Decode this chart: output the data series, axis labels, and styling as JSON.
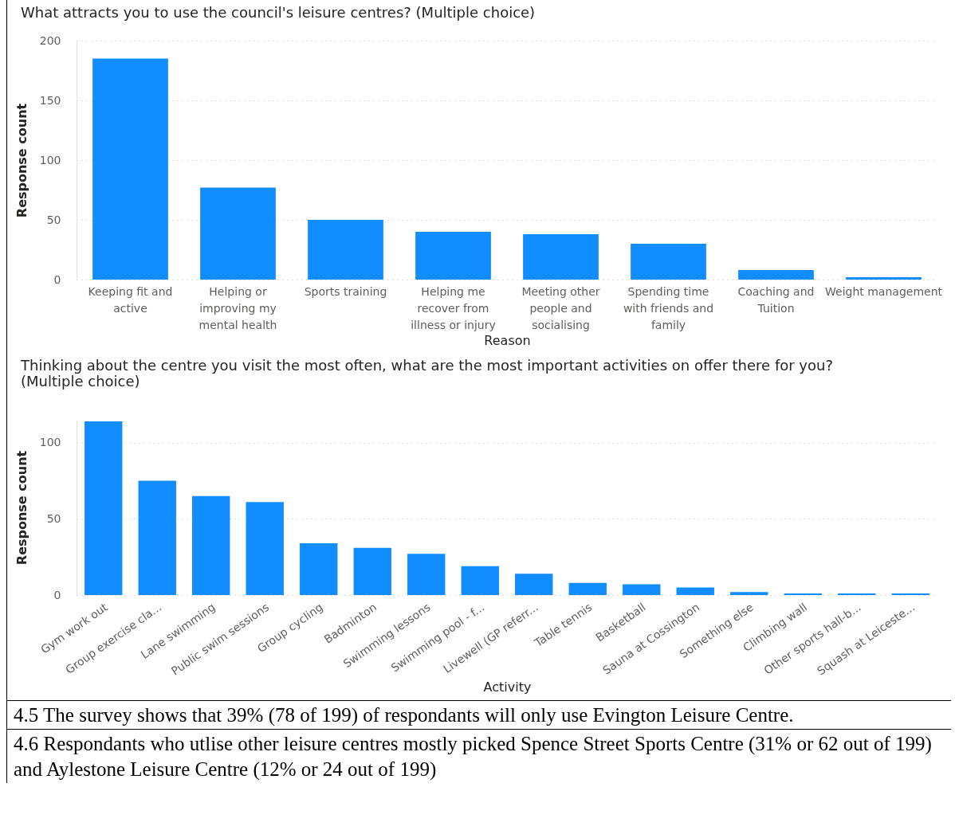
{
  "chart_data": [
    {
      "type": "bar",
      "title": "What attracts you to use the council's leisure centres? (Multiple choice)",
      "xlabel": "Reason",
      "ylabel": "Response count",
      "categories": [
        "Keeping fit and active",
        "Helping or improving my mental health",
        "Sports training",
        "Helping me recover from illness or injury",
        "Meeting other people and socialising",
        "Spending time with friends and family",
        "Coaching and Tuition",
        "Weight management"
      ],
      "values": [
        185,
        77,
        50,
        40,
        38,
        30,
        8,
        2
      ],
      "color": "#118dff",
      "ylim": [
        0,
        200
      ],
      "yticks": [
        0,
        50,
        100,
        150,
        200
      ],
      "grid": "y"
    },
    {
      "type": "bar",
      "title": "Thinking about the centre you visit the most often, what are the most important activities on offer there for you? (Multiple choice)",
      "xlabel": "Activity",
      "ylabel": "Response count",
      "categories": [
        "Gym work out",
        "Group exercise cla...",
        "Lane swimming",
        "Public swim sessions",
        "Group cycling",
        "Badminton",
        "Swimming lessons",
        "Swimming pool - f...",
        "Livewell (GP referr...",
        "Table tennis",
        "Basketball",
        "Sauna at Cossington",
        "Something else",
        "Climbing wall",
        "Other sports hall-b...",
        "Squash at Leiceste..."
      ],
      "values": [
        114,
        75,
        65,
        61,
        34,
        31,
        27,
        19,
        14,
        8,
        7,
        5,
        2,
        1,
        1,
        1
      ],
      "color": "#118dff",
      "ylim": [
        0,
        115
      ],
      "yticks": [
        0,
        50,
        100
      ],
      "grid": "y",
      "annotations": [
        "4.5 The survey shows that 39% (78 of 199) of respondants will only use Evington Leisure Centre.",
        "4.6 Respondants who utlise other leisure centres mostly picked Spence Street Sports Centre (31% or 62 out of 199) and Aylestone Leisure Centre (12% or 24 out of 199)"
      ]
    }
  ]
}
